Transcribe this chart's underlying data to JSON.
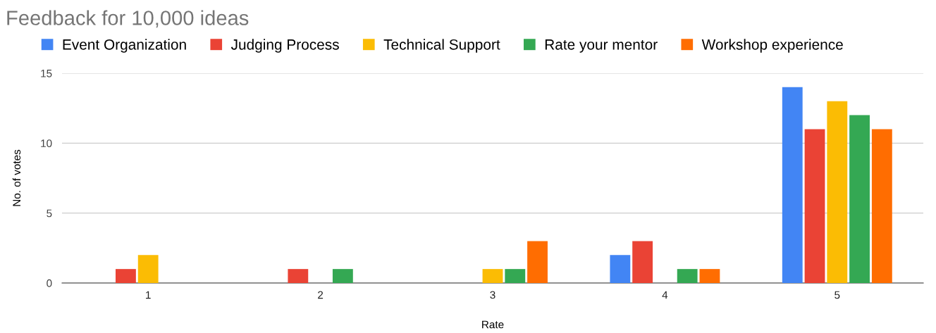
{
  "chart_data": {
    "type": "bar",
    "title": "Feedback for 10,000 ideas",
    "xlabel": "Rate",
    "ylabel": "No. of votes",
    "categories": [
      "1",
      "2",
      "3",
      "4",
      "5"
    ],
    "series": [
      {
        "name": "Event Organization",
        "color": "#4285f4",
        "values": [
          0,
          0,
          0,
          2,
          14
        ]
      },
      {
        "name": "Judging Process",
        "color": "#ea4335",
        "values": [
          1,
          1,
          0,
          3,
          11
        ]
      },
      {
        "name": "Technical Support",
        "color": "#fbbc04",
        "values": [
          2,
          0,
          1,
          0,
          13
        ]
      },
      {
        "name": "Rate your mentor",
        "color": "#34a853",
        "values": [
          0,
          1,
          1,
          1,
          12
        ]
      },
      {
        "name": "Workshop experience",
        "color": "#ff6d01",
        "values": [
          0,
          0,
          3,
          1,
          11
        ]
      }
    ],
    "ylim": [
      0,
      15
    ],
    "yticks": [
      0,
      5,
      10,
      15
    ],
    "grid": "y",
    "legend": "top left"
  }
}
